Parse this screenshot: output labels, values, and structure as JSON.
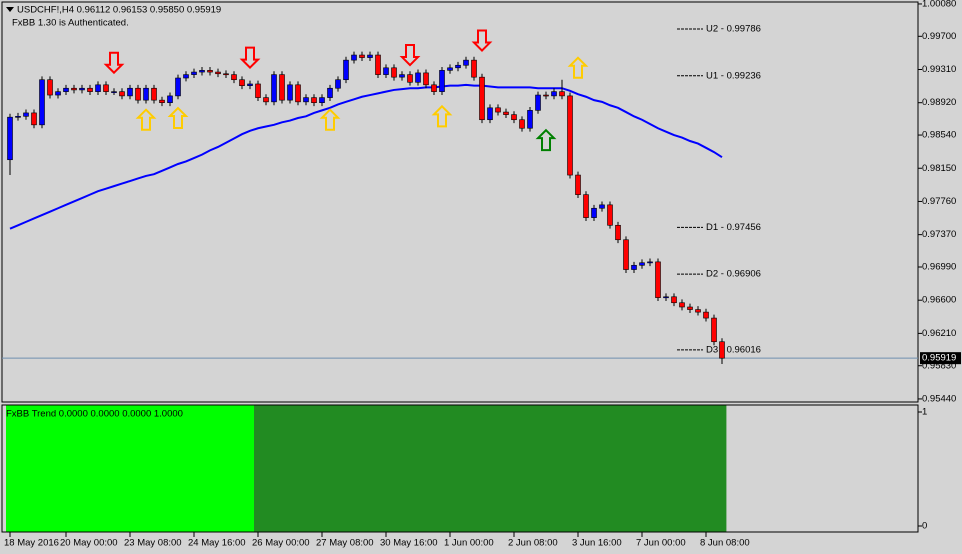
{
  "chart_data": {
    "type": "candlestick",
    "header": "USDCHF!,H4  0.96112 0.96153 0.95850 0.95919",
    "subheader": "FxBB 1.30 is Authenticated.",
    "up_color": "#0000ff",
    "down_color": "#ff0000",
    "wick_color": "#000000",
    "categories": [
      "18 May 2016",
      null,
      null,
      null,
      null,
      null,
      null,
      "20 May 00:00",
      null,
      null,
      null,
      null,
      null,
      null,
      null,
      "23 May 08:00",
      null,
      null,
      null,
      null,
      null,
      null,
      null,
      "24 May 16:00",
      null,
      null,
      null,
      null,
      null,
      null,
      null,
      "26 May 00:00",
      null,
      null,
      null,
      null,
      null,
      null,
      null,
      "27 May 08:00",
      null,
      null,
      null,
      null,
      null,
      null,
      null,
      "30 May 16:00",
      null,
      null,
      null,
      null,
      null,
      null,
      null,
      "1 Jun 00:00",
      null,
      null,
      null,
      null,
      null,
      null,
      null,
      "2 Jun 08:00",
      null,
      null,
      null,
      null,
      null,
      null,
      null,
      "3 Jun 16:00",
      null,
      null,
      null,
      null,
      null,
      null,
      null,
      "7 Jun 00:00",
      null,
      null,
      null,
      null,
      null,
      null,
      null,
      "8 Jun 08:00",
      null,
      null
    ],
    "open": [
      0.9825,
      0.9875,
      0.9876,
      0.988,
      0.9866,
      0.9919,
      0.9901,
      0.9905,
      0.9909,
      0.9907,
      0.9909,
      0.9905,
      0.9913,
      0.9905,
      0.9905,
      0.99,
      0.9909,
      0.9895,
      0.9909,
      0.9895,
      0.9892,
      0.99,
      0.9921,
      0.9925,
      0.9928,
      0.993,
      0.9928,
      0.9926,
      0.9925,
      0.9919,
      0.9912,
      0.9914,
      0.9898,
      0.9893,
      0.9925,
      0.9895,
      0.9913,
      0.9893,
      0.9898,
      0.9892,
      0.9898,
      0.9909,
      0.9919,
      0.9942,
      0.9948,
      0.9945,
      0.9948,
      0.9925,
      0.9933,
      0.9922,
      0.9925,
      0.9916,
      0.9927,
      0.9913,
      0.9905,
      0.993,
      0.9933,
      0.9936,
      0.9942,
      0.9922,
      0.9872,
      0.9886,
      0.9881,
      0.9878,
      0.9872,
      0.9862,
      0.9883,
      0.9901,
      0.99,
      0.9905,
      0.99,
      0.9807,
      0.9784,
      0.9757,
      0.9768,
      0.9772,
      0.9748,
      0.9731,
      0.9696,
      0.9701,
      0.9704,
      0.9705,
      0.9663,
      0.9664,
      0.9657,
      0.9652,
      0.9649,
      0.9646,
      0.9639,
      0.96112
    ],
    "high": [
      0.9879,
      0.988,
      0.9884,
      0.9884,
      0.9923,
      0.9923,
      0.9909,
      0.9913,
      0.9913,
      0.9913,
      0.9913,
      0.9917,
      0.9917,
      0.9909,
      0.9909,
      0.9913,
      0.9913,
      0.9913,
      0.9913,
      0.9899,
      0.9904,
      0.9925,
      0.9929,
      0.9932,
      0.9934,
      0.9934,
      0.9932,
      0.993,
      0.9929,
      0.9923,
      0.9918,
      0.9918,
      0.9902,
      0.9929,
      0.9929,
      0.9917,
      0.9917,
      0.9902,
      0.9902,
      0.9902,
      0.9913,
      0.9923,
      0.9946,
      0.9952,
      0.9952,
      0.9952,
      0.9952,
      0.9937,
      0.9937,
      0.9929,
      0.9929,
      0.9931,
      0.9931,
      0.9917,
      0.9934,
      0.9937,
      0.994,
      0.9946,
      0.9946,
      0.9926,
      0.989,
      0.989,
      0.9885,
      0.9882,
      0.9876,
      0.9887,
      0.9905,
      0.9905,
      0.9909,
      0.9919,
      0.9904,
      0.9811,
      0.9788,
      0.9772,
      0.9776,
      0.9776,
      0.9752,
      0.9735,
      0.9705,
      0.9708,
      0.9709,
      0.9709,
      0.9668,
      0.9668,
      0.9661,
      0.9656,
      0.9653,
      0.965,
      0.9643,
      0.96153
    ],
    "low": [
      0.9807,
      0.9871,
      0.9872,
      0.9862,
      0.9862,
      0.9897,
      0.9897,
      0.9901,
      0.9903,
      0.9903,
      0.9901,
      0.9901,
      0.9901,
      0.9901,
      0.9896,
      0.9896,
      0.9891,
      0.9891,
      0.9891,
      0.9888,
      0.9888,
      0.9896,
      0.9917,
      0.9921,
      0.9924,
      0.9924,
      0.9922,
      0.9921,
      0.9915,
      0.9908,
      0.9908,
      0.9894,
      0.9889,
      0.9889,
      0.9891,
      0.9891,
      0.9889,
      0.9889,
      0.9888,
      0.9888,
      0.9894,
      0.9905,
      0.9915,
      0.9938,
      0.9941,
      0.9941,
      0.9921,
      0.9921,
      0.9918,
      0.9918,
      0.9912,
      0.9912,
      0.9909,
      0.9901,
      0.9901,
      0.9926,
      0.9929,
      0.9932,
      0.9918,
      0.9868,
      0.9868,
      0.9877,
      0.9874,
      0.9868,
      0.9858,
      0.9858,
      0.9879,
      0.9896,
      0.9896,
      0.9896,
      0.9803,
      0.978,
      0.9753,
      0.9753,
      0.9764,
      0.9744,
      0.9727,
      0.9692,
      0.9692,
      0.9697,
      0.97,
      0.9659,
      0.9659,
      0.9653,
      0.9648,
      0.9645,
      0.9642,
      0.9635,
      0.9607,
      0.9585
    ],
    "close": [
      0.9875,
      0.9876,
      0.988,
      0.9866,
      0.9919,
      0.9901,
      0.9905,
      0.9909,
      0.9907,
      0.9909,
      0.9905,
      0.9913,
      0.9905,
      0.9905,
      0.99,
      0.9909,
      0.9895,
      0.9909,
      0.9895,
      0.9892,
      0.99,
      0.9921,
      0.9925,
      0.9928,
      0.993,
      0.9928,
      0.9926,
      0.9925,
      0.9919,
      0.9912,
      0.9914,
      0.9898,
      0.9893,
      0.9925,
      0.9895,
      0.9913,
      0.9893,
      0.9898,
      0.9892,
      0.9898,
      0.9909,
      0.9919,
      0.9942,
      0.9948,
      0.9945,
      0.9948,
      0.9925,
      0.9933,
      0.9922,
      0.9925,
      0.9916,
      0.9927,
      0.9913,
      0.9905,
      0.993,
      0.9933,
      0.9936,
      0.9942,
      0.9922,
      0.9872,
      0.9886,
      0.9881,
      0.9878,
      0.9872,
      0.9862,
      0.9883,
      0.9901,
      0.99,
      0.9905,
      0.99,
      0.9807,
      0.9784,
      0.9757,
      0.9768,
      0.9772,
      0.9748,
      0.9731,
      0.9696,
      0.9701,
      0.9704,
      0.9705,
      0.9663,
      0.9664,
      0.9657,
      0.9652,
      0.9649,
      0.9646,
      0.9639,
      0.96112,
      0.95919
    ],
    "ma": {
      "color": "#0000ff",
      "values": [
        0.9744,
        0.9748,
        0.9752,
        0.9756,
        0.976,
        0.9764,
        0.9768,
        0.9772,
        0.9776,
        0.978,
        0.9784,
        0.9788,
        0.9791,
        0.9794,
        0.9797,
        0.98,
        0.9803,
        0.9806,
        0.9808,
        0.9812,
        0.9816,
        0.982,
        0.9823,
        0.9827,
        0.9831,
        0.9836,
        0.984,
        0.9845,
        0.985,
        0.9855,
        0.9859,
        0.9862,
        0.9864,
        0.9866,
        0.9869,
        0.9871,
        0.9874,
        0.9876,
        0.988,
        0.9883,
        0.9886,
        0.989,
        0.9893,
        0.9896,
        0.9899,
        0.9901,
        0.9903,
        0.9905,
        0.9907,
        0.9908,
        0.9909,
        0.9909,
        0.991,
        0.991,
        0.9911,
        0.9912,
        0.9912,
        0.9913,
        0.9912,
        0.9912,
        0.9911,
        0.991,
        0.991,
        0.991,
        0.991,
        0.991,
        0.9909,
        0.9909,
        0.9909,
        0.9909,
        0.9906,
        0.9902,
        0.9899,
        0.9895,
        0.9893,
        0.9889,
        0.9886,
        0.9881,
        0.9876,
        0.9872,
        0.9867,
        0.9862,
        0.9858,
        0.9854,
        0.9851,
        0.9847,
        0.9844,
        0.9839,
        0.9834,
        0.9828
      ]
    },
    "signals": [
      {
        "index": 13,
        "value": 0.9939,
        "direction": "down",
        "color": "#ff0000"
      },
      {
        "index": 30,
        "value": 0.9945,
        "direction": "down",
        "color": "#ff0000"
      },
      {
        "index": 50,
        "value": 0.9948,
        "direction": "down",
        "color": "#ff0000"
      },
      {
        "index": 59,
        "value": 0.9965,
        "direction": "down",
        "color": "#ff0000"
      },
      {
        "index": 17,
        "value": 0.9872,
        "direction": "up",
        "color": "#ffcc00"
      },
      {
        "index": 21,
        "value": 0.9874,
        "direction": "up",
        "color": "#ffcc00"
      },
      {
        "index": 40,
        "value": 0.9872,
        "direction": "up",
        "color": "#ffcc00"
      },
      {
        "index": 54,
        "value": 0.9876,
        "direction": "up",
        "color": "#ffcc00"
      },
      {
        "index": 71,
        "value": 0.9933,
        "direction": "up",
        "color": "#ffcc00"
      },
      {
        "index": 67,
        "value": 0.9848,
        "direction": "up",
        "color": "#008000"
      }
    ],
    "levels": [
      {
        "label": "U2 - 0.99786",
        "value": 0.99786
      },
      {
        "label": "U1 - 0.99236",
        "value": 0.99236
      },
      {
        "label": "D1 - 0.97456",
        "value": 0.97456
      },
      {
        "label": "D2 - 0.96906",
        "value": 0.96906
      },
      {
        "label": "D3 - 0.96016",
        "value": 0.96016
      }
    ],
    "last_price": {
      "value": 0.95919,
      "label": "0.95919",
      "color": "#6f8faf"
    },
    "ylim": [
      0.95404,
      1.00103
    ],
    "yticks": [
      {
        "value": 1.0008,
        "label": "1.00080"
      },
      {
        "value": 0.997,
        "label": "0.99700"
      },
      {
        "value": 0.9931,
        "label": "0.99310"
      },
      {
        "value": 0.9892,
        "label": "0.98920"
      },
      {
        "value": 0.9854,
        "label": "0.98540"
      },
      {
        "value": 0.9815,
        "label": "0.98150"
      },
      {
        "value": 0.9776,
        "label": "0.97760"
      },
      {
        "value": 0.9737,
        "label": "0.97370"
      },
      {
        "value": 0.9699,
        "label": "0.96990"
      },
      {
        "value": 0.966,
        "label": "0.96600"
      },
      {
        "value": 0.9621,
        "label": "0.96210"
      },
      {
        "value": 0.9583,
        "label": "0.95830"
      },
      {
        "value": 0.9544,
        "label": "0.95440"
      }
    ],
    "indicator": {
      "label": "FxBB Trend 0.0000 0.0000 0.0000 1.0000",
      "ylim": [
        0,
        1
      ],
      "yticks": [
        1,
        0
      ],
      "values": [
        1,
        1,
        1,
        1,
        1,
        1,
        1,
        1,
        1,
        1,
        1,
        1,
        1,
        1,
        1,
        1,
        1,
        1,
        1,
        1,
        1,
        1,
        1,
        1,
        1,
        1,
        1,
        1,
        1,
        1,
        1,
        1,
        1,
        1,
        1,
        1,
        1,
        1,
        1,
        1,
        1,
        1,
        1,
        1,
        1,
        1,
        1,
        1,
        1,
        1,
        1,
        1,
        1,
        1,
        1,
        1,
        1,
        1,
        1,
        1,
        1,
        1,
        1,
        1,
        1,
        1,
        1,
        1,
        1,
        1,
        1,
        1,
        1,
        1,
        1,
        1,
        1,
        1,
        1,
        1,
        1,
        1,
        1,
        1,
        1,
        1,
        1,
        1,
        1,
        1
      ],
      "colors": [
        "#00ff00",
        "#00ff00",
        "#00ff00",
        "#00ff00",
        "#00ff00",
        "#00ff00",
        "#00ff00",
        "#00ff00",
        "#00ff00",
        "#00ff00",
        "#00ff00",
        "#00ff00",
        "#00ff00",
        "#00ff00",
        "#00ff00",
        "#00ff00",
        "#00ff00",
        "#00ff00",
        "#00ff00",
        "#00ff00",
        "#00ff00",
        "#00ff00",
        "#00ff00",
        "#00ff00",
        "#00ff00",
        "#00ff00",
        "#00ff00",
        "#00ff00",
        "#00ff00",
        "#00ff00",
        "#00ff00",
        "#228b22",
        "#228b22",
        "#228b22",
        "#228b22",
        "#228b22",
        "#228b22",
        "#228b22",
        "#228b22",
        "#228b22",
        "#228b22",
        "#228b22",
        "#228b22",
        "#228b22",
        "#228b22",
        "#228b22",
        "#228b22",
        "#228b22",
        "#228b22",
        "#228b22",
        "#228b22",
        "#228b22",
        "#228b22",
        "#228b22",
        "#228b22",
        "#228b22",
        "#228b22",
        "#228b22",
        "#228b22",
        "#228b22",
        "#228b22",
        "#228b22",
        "#228b22",
        "#228b22",
        "#228b22",
        "#228b22",
        "#228b22",
        "#228b22",
        "#228b22",
        "#228b22",
        "#228b22",
        "#228b22",
        "#228b22",
        "#228b22",
        "#228b22",
        "#228b22",
        "#228b22",
        "#228b22",
        "#228b22",
        "#228b22",
        "#228b22",
        "#228b22",
        "#228b22",
        "#228b22",
        "#228b22",
        "#228b22",
        "#228b22",
        "#228b22",
        "#228b22",
        "#228b22"
      ]
    }
  }
}
